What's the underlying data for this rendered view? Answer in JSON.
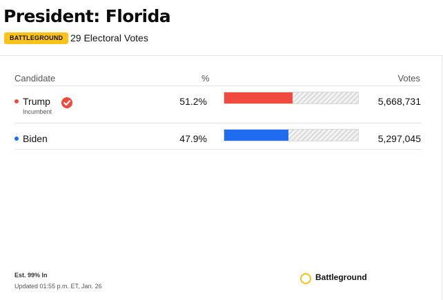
{
  "header": {
    "title": "President: Florida",
    "badge": "Battleground",
    "electoral_votes": "29 Electoral Votes"
  },
  "table": {
    "columns": {
      "candidate": "Candidate",
      "pct": "%",
      "votes": "Votes"
    },
    "rows": [
      {
        "name": "Trump",
        "note": "Incumbent",
        "pct": "51.2%",
        "share": 51.2,
        "votes": "5,668,731",
        "color": "#f04a3f",
        "winner": true,
        "icon": "winner-check-icon"
      },
      {
        "name": "Biden",
        "pct": "47.9%",
        "share": 47.9,
        "votes": "5,297,045",
        "color": "#1f6cf0",
        "winner": false
      }
    ]
  },
  "footer": {
    "est": "Est. 99% In",
    "updated": "Updated 01:55 p.m. ET, Jan. 26",
    "legend_label": "Battleground",
    "legend_color": "#f6c115"
  }
}
